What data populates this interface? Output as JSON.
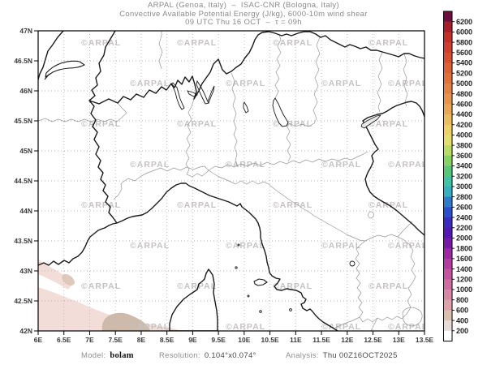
{
  "header": {
    "line1": "ARPAL (Genoa, Italy)  –  ISAC-CNR (Bologna, Italy)",
    "line2": "Convective Available Potential Energy (J/kg), 6000-10m wind shear",
    "line3": "09 UTC Thu 16 OCT  –  τ = 09h"
  },
  "axes": {
    "x_ticks": [
      "6E",
      "6.5E",
      "7E",
      "7.5E",
      "8E",
      "8.5E",
      "9E",
      "9.5E",
      "10E",
      "10.5E",
      "11E",
      "11.5E",
      "12E",
      "12.5E",
      "13E",
      "13.5E"
    ],
    "y_ticks": [
      "47N",
      "46.5N",
      "46N",
      "45.5N",
      "45N",
      "44.5N",
      "44N",
      "43.5N",
      "43N",
      "42.5N",
      "42N"
    ]
  },
  "scale": {
    "units": "J/kg",
    "min": 200,
    "max": 6200,
    "step": 200,
    "labels_top_to_bottom": [
      "6200",
      "6000",
      "5800",
      "5600",
      "5400",
      "5200",
      "5000",
      "4800",
      "4600",
      "4400",
      "4200",
      "4000",
      "3800",
      "3600",
      "3400",
      "3200",
      "3000",
      "2800",
      "2600",
      "2400",
      "2200",
      "2000",
      "1800",
      "1600",
      "1400",
      "1200",
      "1000",
      "800",
      "600",
      "400",
      "200"
    ],
    "colors_top_to_bottom": [
      "#6E0E3E",
      "#A61E28",
      "#C23026",
      "#CE402A",
      "#D65030",
      "#DB6136",
      "#E0713C",
      "#E48144",
      "#E7934E",
      "#EAA557",
      "#EDBA60",
      "#EFD068",
      "#E3DF6F",
      "#B8DC66",
      "#86D363",
      "#58C878",
      "#41C3A6",
      "#38AEC4",
      "#2F7CC8",
      "#2C50CC",
      "#3A2CC0",
      "#5519B2",
      "#7A18A8",
      "#9C28A4",
      "#B43CA0",
      "#C4549E",
      "#CE6CA0",
      "#D887A6",
      "#E0A0AC",
      "#D9C0B0",
      "#E7DBD7",
      "#FFFFFF"
    ]
  },
  "watermark": {
    "text": "©ARPAL"
  },
  "map": {
    "shade_light": "#F3DDD9",
    "shade_mid": "#DFC9BC",
    "shade_dark": "#CEBAAA",
    "land_border_color": "#1a1a1a",
    "region_border_color": "#979797",
    "grid_color": "#b7b7b7",
    "watermark_color": "#c6c2c2"
  },
  "footer": {
    "model_label": "Model:",
    "model_value": "bolam",
    "resolution_label": "Resolution:",
    "resolution_value": "0.104°x0.074°",
    "analysis_label": "Analysis:",
    "analysis_value": "Thu 00Z16OCT2025"
  }
}
